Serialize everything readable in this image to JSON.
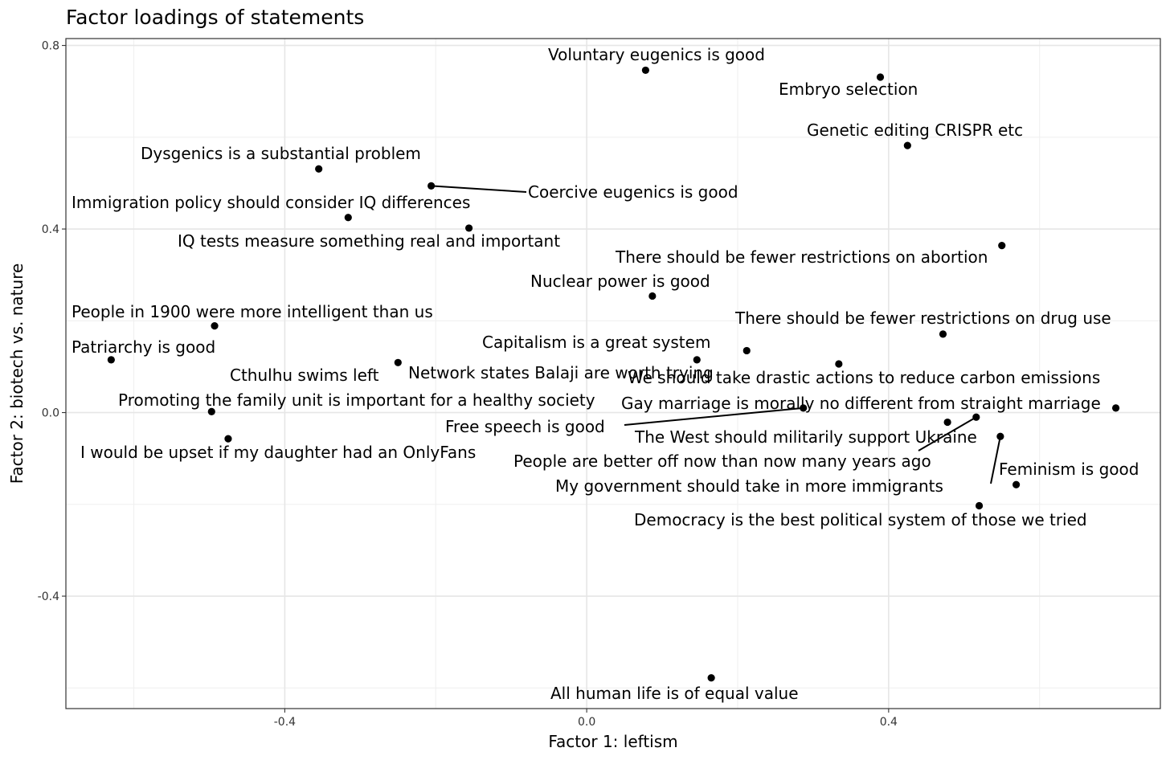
{
  "chart_data": {
    "type": "scatter",
    "title": "Factor loadings of statements",
    "xlabel": "Factor 1: leftism",
    "ylabel": "Factor 2: biotech vs. nature",
    "xlim": [
      -0.69,
      0.76
    ],
    "ylim": [
      -0.645,
      0.815
    ],
    "x_ticks": [
      -0.4,
      0.0,
      0.4
    ],
    "x_tick_labels": [
      "-0.4",
      "0.0",
      "0.4"
    ],
    "y_ticks": [
      -0.4,
      0.0,
      0.4,
      0.8
    ],
    "y_tick_labels": [
      "-0.4",
      "0.0",
      "0.4",
      "0.8"
    ],
    "grid": true,
    "legend": "none",
    "points": [
      {
        "label": "Voluntary eugenics is good",
        "x": 0.078,
        "y": 0.746
      },
      {
        "label": "Embryo selection",
        "x": 0.389,
        "y": 0.731
      },
      {
        "label": "Genetic editing CRISPR etc",
        "x": 0.425,
        "y": 0.582
      },
      {
        "label": "Dysgenics is a substantial problem",
        "x": -0.355,
        "y": 0.531
      },
      {
        "label": "Coercive eugenics is good",
        "x": -0.206,
        "y": 0.494
      },
      {
        "label": "Immigration policy should consider IQ differences",
        "x": -0.316,
        "y": 0.425
      },
      {
        "label": "IQ tests measure something real and important",
        "x": -0.156,
        "y": 0.402
      },
      {
        "label": "There should be fewer restrictions on abortion",
        "x": 0.55,
        "y": 0.364
      },
      {
        "label": "Nuclear power is good",
        "x": 0.087,
        "y": 0.254
      },
      {
        "label": "People in 1900 were more intelligent than us",
        "x": -0.493,
        "y": 0.189
      },
      {
        "label": "There should be fewer restrictions on drug use",
        "x": 0.472,
        "y": 0.171
      },
      {
        "label": "Capitalism is a great system",
        "x": 0.212,
        "y": 0.135
      },
      {
        "label": "Patriarchy is good",
        "x": -0.63,
        "y": 0.115
      },
      {
        "label": "Network states Balaji are worth trying",
        "x": 0.146,
        "y": 0.115
      },
      {
        "label": "Cthulhu swims left",
        "x": -0.25,
        "y": 0.109
      },
      {
        "label": "We should take drastic actions to reduce carbon emissions",
        "x": 0.334,
        "y": 0.106
      },
      {
        "label": "Gay marriage is morally no different from straight marriage",
        "x": 0.701,
        "y": 0.01
      },
      {
        "label": "Free speech is good",
        "x": 0.287,
        "y": 0.01
      },
      {
        "label": "Promoting the family unit is important for a healthy society",
        "x": -0.497,
        "y": 0.002
      },
      {
        "label": "The West should militarily support Ukraine",
        "x": 0.478,
        "y": -0.021
      },
      {
        "label": "People are better off now than now many years ago",
        "x": 0.516,
        "y": -0.01
      },
      {
        "label": "My government should take in more immigrants",
        "x": 0.548,
        "y": -0.052
      },
      {
        "label": "I would be upset if my daughter had an OnlyFans",
        "x": -0.475,
        "y": -0.057
      },
      {
        "label": "Feminism is good",
        "x": 0.569,
        "y": -0.157
      },
      {
        "label": "Democracy is the best political system of those we tried",
        "x": 0.52,
        "y": -0.203
      },
      {
        "label": "All human life is of equal value",
        "x": 0.165,
        "y": -0.578
      }
    ]
  }
}
